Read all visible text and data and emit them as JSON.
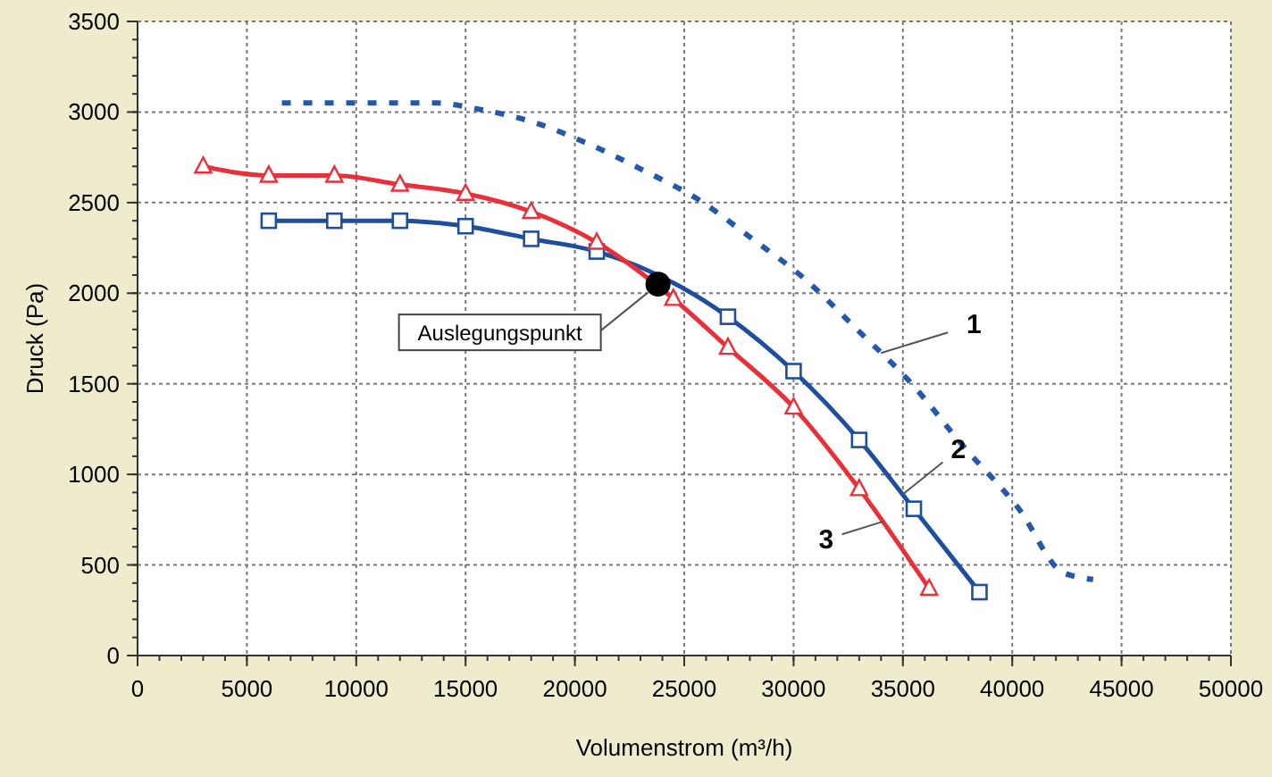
{
  "chart_data": {
    "type": "line",
    "xlabel": "Volumenstrom (m³/h)",
    "ylabel": "Druck (Pa)",
    "xlim": [
      0,
      50000
    ],
    "xticks": [
      0,
      5000,
      10000,
      15000,
      20000,
      25000,
      30000,
      35000,
      40000,
      45000,
      50000
    ],
    "ylim": [
      0,
      3500
    ],
    "yticks": [
      0,
      500,
      1000,
      1500,
      2000,
      2500,
      3000,
      3500
    ],
    "grid": true,
    "series": [
      {
        "color": "#2458a8",
        "line_style": "dotted",
        "marker": "none",
        "x": [
          6600,
          10000,
          13700,
          15400,
          18200,
          20700,
          23100,
          25600,
          28000,
          30500,
          32900,
          35400,
          37800,
          40300,
          42300,
          43700
        ],
        "values": [
          3050,
          3050,
          3050,
          3020,
          2940,
          2820,
          2680,
          2520,
          2310,
          2080,
          1800,
          1500,
          1150,
          810,
          460,
          420
        ]
      },
      {
        "color": "#1f4e9c",
        "line_style": "solid",
        "marker": "square",
        "x": [
          6000,
          9000,
          12000,
          15000,
          18000,
          21000,
          27000,
          30000,
          33000,
          35500,
          38500
        ],
        "values": [
          2400,
          2400,
          2400,
          2370,
          2300,
          2230,
          1870,
          1570,
          1190,
          810,
          350
        ]
      },
      {
        "color": "#e8303a",
        "line_style": "solid",
        "marker": "triangle",
        "x": [
          3000,
          6000,
          9000,
          12000,
          15000,
          18000,
          21000,
          24500,
          27000,
          30000,
          33000,
          36200
        ],
        "values": [
          2700,
          2650,
          2650,
          2600,
          2550,
          2450,
          2280,
          1970,
          1700,
          1370,
          920,
          370
        ]
      },
      {
        "type": "scatter",
        "color": "#000000",
        "marker": "circle",
        "x": [
          23800
        ],
        "values": [
          2050
        ]
      }
    ],
    "annotations": [
      {
        "text": "1",
        "x": 34000,
        "y": 1670
      },
      {
        "text": "2",
        "x": 35000,
        "y": 890
      },
      {
        "text": "3",
        "x": 34100,
        "y": 740
      },
      {
        "text": "Auslegungspunkt",
        "x": 23800,
        "y": 2050
      }
    ]
  }
}
